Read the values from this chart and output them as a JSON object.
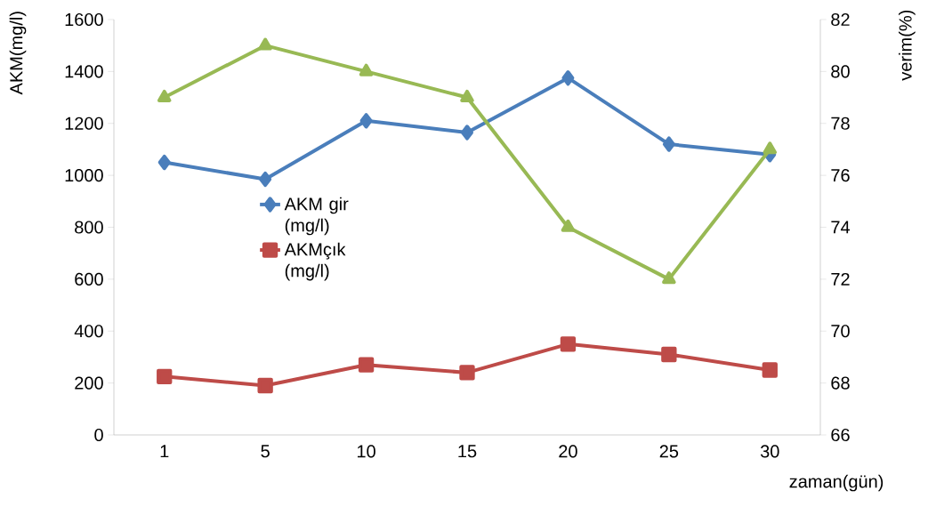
{
  "chart_data": {
    "type": "line",
    "xlabel": "zaman(gün)",
    "ylabel": "AKM(mg/l)",
    "y2label": "verim(%)",
    "categories": [
      "1",
      "5",
      "10",
      "15",
      "20",
      "25",
      "30"
    ],
    "series": [
      {
        "name": "AKM gir (mg/l)",
        "color": "#4a7ebb",
        "marker": "diamond",
        "values": [
          1050,
          985,
          1210,
          1165,
          1375,
          1120,
          1080
        ]
      },
      {
        "name": "AKMçık (mg/l)",
        "color": "#be4b48",
        "marker": "square",
        "values": [
          225,
          190,
          270,
          240,
          350,
          310,
          250
        ]
      },
      {
        "color": "#98b954",
        "marker": "triangle",
        "axis": "y2",
        "values": [
          79,
          81,
          80,
          79,
          74,
          72,
          77
        ]
      }
    ],
    "ylim": [
      0,
      1600
    ],
    "yticks": [
      0,
      200,
      400,
      600,
      800,
      1000,
      1200,
      1400,
      1600
    ],
    "y2lim": [
      66,
      82
    ],
    "y2ticks": [
      66,
      68,
      70,
      72,
      74,
      76,
      78,
      80,
      82
    ],
    "grid": false,
    "legend": "left",
    "line_style": "solid"
  }
}
